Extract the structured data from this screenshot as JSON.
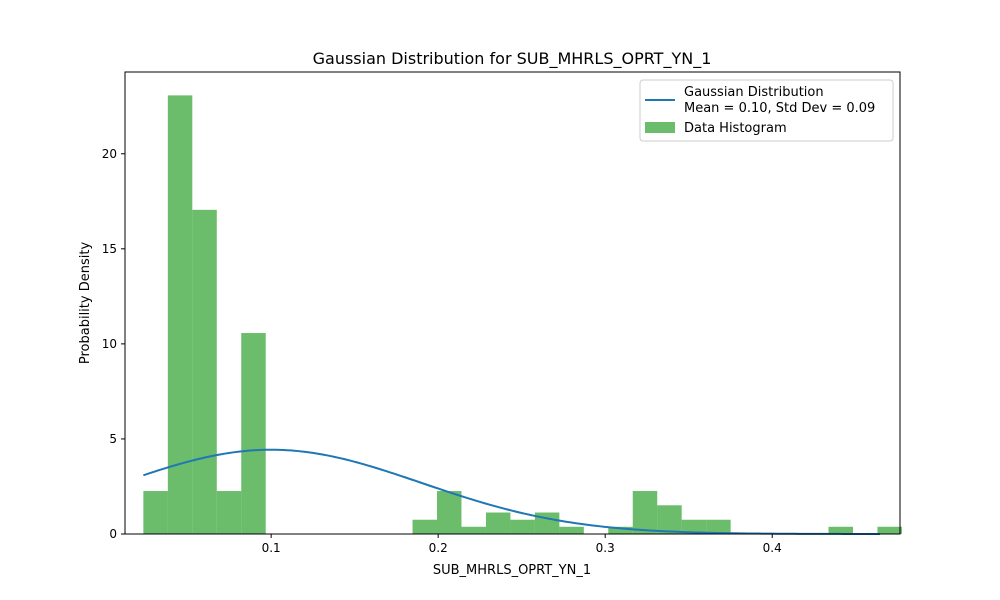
{
  "chart_data": {
    "type": "bar",
    "title": "Gaussian Distribution for SUB_MHRLS_OPRT_YN_1",
    "xlabel": "SUB_MHRLS_OPRT_YN_1",
    "ylabel": "Probability Density",
    "xlim": [
      0.0125,
      0.4765
    ],
    "ylim": [
      0,
      24.3
    ],
    "x_ticks": [
      {
        "value": 0.1,
        "label": "0.1"
      },
      {
        "value": 0.2,
        "label": "0.2"
      },
      {
        "value": 0.3,
        "label": "0.3"
      },
      {
        "value": 0.4,
        "label": "0.4"
      }
    ],
    "y_ticks": [
      {
        "value": 0,
        "label": "0"
      },
      {
        "value": 5,
        "label": "5"
      },
      {
        "value": 10,
        "label": "10"
      },
      {
        "value": 15,
        "label": "15"
      },
      {
        "value": 20,
        "label": "20"
      }
    ],
    "histogram": {
      "name": "Data Histogram",
      "color": "#2ca02c",
      "alpha": 0.7,
      "bin_start": 0.0235,
      "bin_width": 0.01465,
      "values": [
        2.26,
        23.07,
        17.05,
        2.26,
        10.57,
        0,
        0,
        0,
        0,
        0,
        0,
        0.75,
        2.26,
        0.38,
        1.13,
        0.75,
        1.13,
        0.38,
        0,
        0.38,
        2.26,
        1.51,
        0.75,
        0.75,
        0,
        0,
        0,
        0,
        0.38,
        0,
        0.38
      ]
    },
    "gaussian": {
      "name": "Gaussian Distribution\nMean = 0.10, Std Dev = 0.09",
      "color": "#1f77b4",
      "mean": 0.1,
      "std": 0.09,
      "x_range": [
        0.0235,
        0.4645
      ]
    },
    "legend": {
      "position": "top-right",
      "entries": [
        {
          "line1": "Gaussian Distribution",
          "line2": "Mean = 0.10, Std Dev = 0.09",
          "kind": "line"
        },
        {
          "line1": "Data Histogram",
          "line2": "",
          "kind": "patch"
        }
      ]
    },
    "grid": false
  }
}
